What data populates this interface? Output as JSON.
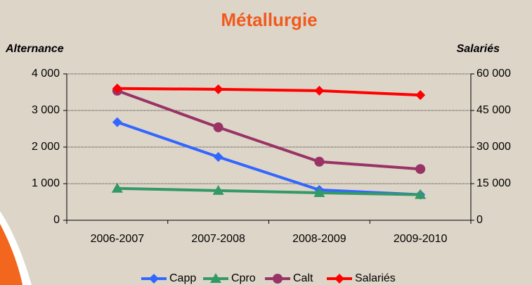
{
  "chart_data": {
    "type": "line",
    "title": "Métallurgie",
    "y_label": "Alternance",
    "y2_label": "Salariés",
    "categories": [
      "2006-2007",
      "2007-2008",
      "2008-2009",
      "2009-2010"
    ],
    "series": [
      {
        "name": "Capp",
        "color": "#3366ff",
        "marker": "diamond",
        "values": [
          2680,
          1730,
          830,
          700
        ]
      },
      {
        "name": "Cpro",
        "color": "#339966",
        "marker": "triangle",
        "values": [
          870,
          810,
          750,
          700
        ]
      },
      {
        "name": "Calt",
        "color": "#993366",
        "marker": "circle",
        "values": [
          3540,
          2540,
          1600,
          1400
        ]
      },
      {
        "name": "Salariés",
        "color": "#ff0000",
        "marker": "diamond",
        "axis": "y2",
        "values": [
          54000,
          53700,
          53100,
          51300
        ]
      }
    ],
    "ylim": [
      0,
      4000
    ],
    "yticks": [
      0,
      {
        "value": 1000,
        "label": "1 000"
      },
      {
        "value": 2000,
        "label": "2 000"
      },
      {
        "value": 3000,
        "label": "3 000"
      },
      {
        "value": 4000,
        "label": "4 000"
      }
    ],
    "y2lim": [
      0,
      60000
    ],
    "y2ticks": [
      0,
      {
        "value": 15000,
        "label": "15 000"
      },
      {
        "value": 30000,
        "label": "30 000"
      },
      {
        "value": 45000,
        "label": "45 000"
      },
      {
        "value": 60000,
        "label": "60 000"
      }
    ],
    "grid": true,
    "legend": "bottom"
  }
}
